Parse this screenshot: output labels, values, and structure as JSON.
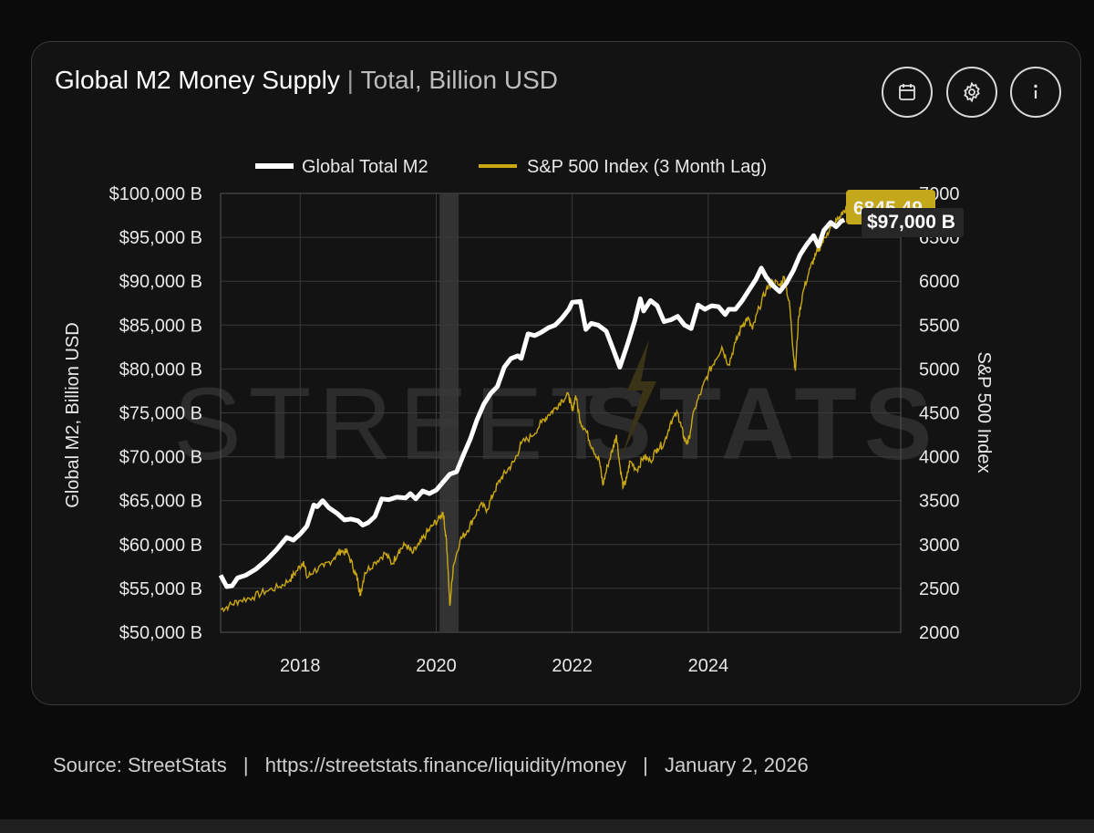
{
  "header": {
    "title": "Global M2 Money Supply",
    "separator": "|",
    "subtitle": "Total, Billion USD"
  },
  "toolbar": {
    "calendar": "calendar-icon",
    "settings": "gear-icon",
    "info": "info-icon"
  },
  "footer": {
    "source_label": "Source:",
    "source_name": "StreetStats",
    "url": "https://streetstats.finance/liquidity/money",
    "date": "January 2, 2026",
    "pipe": "|"
  },
  "watermark": {
    "left": "STREET",
    "right": "STATS"
  },
  "colors": {
    "m2": "#ffffff",
    "spx": "#c9a713",
    "badge_spx_bg": "#c3a81b",
    "badge_m2_bg": "#2a2a2a",
    "grid": "#3a3a3a",
    "recession": "#3a3a3a"
  },
  "chart_data": {
    "type": "line",
    "legend": [
      "Global Total M2",
      "S&P 500 Index (3 Month Lag)"
    ],
    "y_left_label": "Global M2, Billion USD",
    "y_right_label": "S&P 500 Index",
    "y_left_ticks": [
      "$100,000 B",
      "$95,000 B",
      "$90,000 B",
      "$85,000 B",
      "$80,000 B",
      "$75,000 B",
      "$70,000 B",
      "$65,000 B",
      "$60,000 B",
      "$55,000 B",
      "$50,000 B"
    ],
    "y_left_range": [
      50000,
      100000
    ],
    "y_right_ticks": [
      "7000",
      "6500",
      "6000",
      "5500",
      "5000",
      "4500",
      "4000",
      "3500",
      "3000",
      "2500",
      "2000"
    ],
    "y_right_range": [
      2000,
      7000
    ],
    "x_ticks": [
      "2018",
      "2020",
      "2022",
      "2024"
    ],
    "x_range": [
      2016.83,
      2026.83
    ],
    "recession": [
      2020.05,
      2020.33
    ],
    "last_m2_label": "$97,000 B",
    "last_spx_label": "6845.49",
    "m2_series": [
      [
        2016.83,
        56500
      ],
      [
        2016.92,
        55200
      ],
      [
        2017.0,
        55300
      ],
      [
        2017.08,
        56200
      ],
      [
        2017.2,
        56500
      ],
      [
        2017.35,
        57200
      ],
      [
        2017.5,
        58200
      ],
      [
        2017.65,
        59400
      ],
      [
        2017.8,
        60800
      ],
      [
        2017.9,
        60500
      ],
      [
        2018.0,
        61200
      ],
      [
        2018.1,
        62100
      ],
      [
        2018.2,
        64500
      ],
      [
        2018.25,
        64300
      ],
      [
        2018.33,
        65000
      ],
      [
        2018.42,
        64200
      ],
      [
        2018.55,
        63500
      ],
      [
        2018.65,
        62800
      ],
      [
        2018.75,
        62900
      ],
      [
        2018.85,
        62700
      ],
      [
        2018.92,
        62200
      ],
      [
        2019.0,
        62500
      ],
      [
        2019.1,
        63200
      ],
      [
        2019.2,
        65200
      ],
      [
        2019.3,
        65100
      ],
      [
        2019.42,
        65400
      ],
      [
        2019.55,
        65300
      ],
      [
        2019.62,
        65800
      ],
      [
        2019.7,
        65200
      ],
      [
        2019.8,
        66100
      ],
      [
        2019.9,
        65800
      ],
      [
        2020.0,
        66200
      ],
      [
        2020.1,
        67100
      ],
      [
        2020.2,
        68000
      ],
      [
        2020.3,
        68300
      ],
      [
        2020.4,
        70200
      ],
      [
        2020.5,
        72000
      ],
      [
        2020.6,
        74200
      ],
      [
        2020.7,
        76000
      ],
      [
        2020.8,
        77200
      ],
      [
        2020.9,
        78000
      ],
      [
        2021.0,
        80200
      ],
      [
        2021.1,
        81200
      ],
      [
        2021.2,
        81500
      ],
      [
        2021.25,
        81200
      ],
      [
        2021.35,
        84000
      ],
      [
        2021.45,
        83800
      ],
      [
        2021.55,
        84200
      ],
      [
        2021.65,
        84700
      ],
      [
        2021.75,
        85000
      ],
      [
        2021.85,
        85800
      ],
      [
        2021.95,
        86800
      ],
      [
        2022.0,
        87600
      ],
      [
        2022.12,
        87700
      ],
      [
        2022.2,
        84500
      ],
      [
        2022.28,
        85200
      ],
      [
        2022.38,
        85000
      ],
      [
        2022.5,
        84300
      ],
      [
        2022.6,
        82300
      ],
      [
        2022.7,
        80200
      ],
      [
        2022.82,
        83000
      ],
      [
        2022.92,
        85500
      ],
      [
        2023.0,
        88000
      ],
      [
        2023.05,
        86600
      ],
      [
        2023.15,
        87800
      ],
      [
        2023.25,
        87200
      ],
      [
        2023.35,
        85400
      ],
      [
        2023.45,
        85600
      ],
      [
        2023.55,
        86000
      ],
      [
        2023.65,
        85000
      ],
      [
        2023.75,
        84600
      ],
      [
        2023.85,
        87300
      ],
      [
        2023.95,
        86800
      ],
      [
        2024.05,
        87200
      ],
      [
        2024.15,
        87100
      ],
      [
        2024.25,
        86200
      ],
      [
        2024.3,
        86800
      ],
      [
        2024.4,
        86800
      ],
      [
        2024.5,
        87800
      ],
      [
        2024.6,
        89000
      ],
      [
        2024.7,
        90200
      ],
      [
        2024.78,
        91500
      ],
      [
        2024.85,
        90500
      ],
      [
        2024.95,
        89500
      ],
      [
        2025.05,
        88800
      ],
      [
        2025.15,
        89800
      ],
      [
        2025.25,
        91200
      ],
      [
        2025.35,
        93000
      ],
      [
        2025.45,
        94200
      ],
      [
        2025.55,
        95200
      ],
      [
        2025.62,
        94000
      ],
      [
        2025.7,
        95800
      ],
      [
        2025.8,
        96700
      ],
      [
        2025.88,
        96200
      ],
      [
        2025.95,
        96800
      ],
      [
        2026.0,
        97000
      ]
    ],
    "spx_series": [
      [
        2016.83,
        2260
      ],
      [
        2016.95,
        2300
      ],
      [
        2017.1,
        2360
      ],
      [
        2017.3,
        2400
      ],
      [
        2017.5,
        2470
      ],
      [
        2017.7,
        2520
      ],
      [
        2017.85,
        2600
      ],
      [
        2017.95,
        2700
      ],
      [
        2018.05,
        2810
      ],
      [
        2018.1,
        2620
      ],
      [
        2018.2,
        2700
      ],
      [
        2018.35,
        2750
      ],
      [
        2018.5,
        2850
      ],
      [
        2018.6,
        2930
      ],
      [
        2018.7,
        2900
      ],
      [
        2018.8,
        2700
      ],
      [
        2018.85,
        2580
      ],
      [
        2018.88,
        2420
      ],
      [
        2018.95,
        2680
      ],
      [
        2019.1,
        2800
      ],
      [
        2019.25,
        2900
      ],
      [
        2019.35,
        2780
      ],
      [
        2019.45,
        2930
      ],
      [
        2019.55,
        3000
      ],
      [
        2019.65,
        2900
      ],
      [
        2019.75,
        3000
      ],
      [
        2019.85,
        3120
      ],
      [
        2019.95,
        3220
      ],
      [
        2020.05,
        3300
      ],
      [
        2020.1,
        3370
      ],
      [
        2020.15,
        3050
      ],
      [
        2020.2,
        2300
      ],
      [
        2020.25,
        2750
      ],
      [
        2020.35,
        3050
      ],
      [
        2020.45,
        3150
      ],
      [
        2020.55,
        3300
      ],
      [
        2020.65,
        3450
      ],
      [
        2020.75,
        3400
      ],
      [
        2020.85,
        3600
      ],
      [
        2020.95,
        3750
      ],
      [
        2021.05,
        3850
      ],
      [
        2021.15,
        3950
      ],
      [
        2021.25,
        4150
      ],
      [
        2021.4,
        4230
      ],
      [
        2021.55,
        4390
      ],
      [
        2021.65,
        4480
      ],
      [
        2021.75,
        4550
      ],
      [
        2021.85,
        4650
      ],
      [
        2021.95,
        4700
      ],
      [
        2022.0,
        4520
      ],
      [
        2022.05,
        4700
      ],
      [
        2022.12,
        4400
      ],
      [
        2022.2,
        4300
      ],
      [
        2022.3,
        4100
      ],
      [
        2022.4,
        3950
      ],
      [
        2022.45,
        3680
      ],
      [
        2022.52,
        3900
      ],
      [
        2022.6,
        4100
      ],
      [
        2022.65,
        4250
      ],
      [
        2022.7,
        3900
      ],
      [
        2022.75,
        3650
      ],
      [
        2022.8,
        3750
      ],
      [
        2022.85,
        3950
      ],
      [
        2022.95,
        3850
      ],
      [
        2023.05,
        4000
      ],
      [
        2023.15,
        3950
      ],
      [
        2023.25,
        4100
      ],
      [
        2023.35,
        4150
      ],
      [
        2023.45,
        4400
      ],
      [
        2023.55,
        4500
      ],
      [
        2023.6,
        4350
      ],
      [
        2023.65,
        4200
      ],
      [
        2023.7,
        4150
      ],
      [
        2023.8,
        4550
      ],
      [
        2023.9,
        4750
      ],
      [
        2024.0,
        4950
      ],
      [
        2024.1,
        5100
      ],
      [
        2024.2,
        5250
      ],
      [
        2024.3,
        5050
      ],
      [
        2024.4,
        5300
      ],
      [
        2024.5,
        5500
      ],
      [
        2024.58,
        5580
      ],
      [
        2024.65,
        5450
      ],
      [
        2024.75,
        5700
      ],
      [
        2024.85,
        5900
      ],
      [
        2024.95,
        6000
      ],
      [
        2025.05,
        5950
      ],
      [
        2025.12,
        6050
      ],
      [
        2025.2,
        5700
      ],
      [
        2025.25,
        5200
      ],
      [
        2025.28,
        4980
      ],
      [
        2025.33,
        5600
      ],
      [
        2025.4,
        5900
      ],
      [
        2025.5,
        6150
      ],
      [
        2025.58,
        6300
      ],
      [
        2025.65,
        6400
      ],
      [
        2025.75,
        6550
      ],
      [
        2025.85,
        6650
      ],
      [
        2025.95,
        6750
      ],
      [
        2026.05,
        6845.49
      ]
    ]
  }
}
